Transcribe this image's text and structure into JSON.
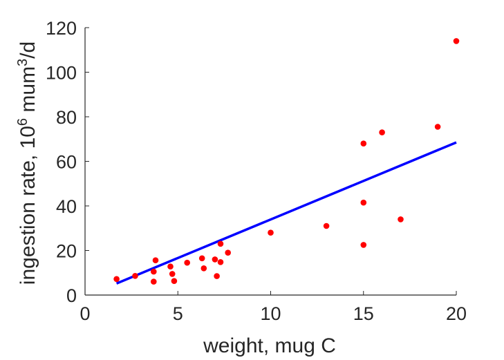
{
  "chart_data": {
    "type": "scatter",
    "title": "",
    "xlabel": "weight, mug C",
    "ylabel": {
      "prefix": "ingestion rate, 10",
      "exp1": "6",
      "middle": " mum",
      "exp2": "3",
      "suffix": "/d"
    },
    "xlim": [
      0,
      20
    ],
    "ylim": [
      0,
      120
    ],
    "xticks": [
      0,
      5,
      10,
      15,
      20
    ],
    "yticks": [
      0,
      20,
      40,
      60,
      80,
      100,
      120
    ],
    "grid": false,
    "legend": "none",
    "series": [
      {
        "kind": "scatter",
        "color": "#ff0000",
        "points": [
          {
            "x": 1.7,
            "y": 7.2
          },
          {
            "x": 2.7,
            "y": 8.6
          },
          {
            "x": 3.7,
            "y": 10.5
          },
          {
            "x": 3.7,
            "y": 6.0
          },
          {
            "x": 3.8,
            "y": 15.6
          },
          {
            "x": 4.6,
            "y": 12.8
          },
          {
            "x": 4.7,
            "y": 9.5
          },
          {
            "x": 4.8,
            "y": 6.3
          },
          {
            "x": 5.5,
            "y": 14.5
          },
          {
            "x": 6.3,
            "y": 16.5
          },
          {
            "x": 6.4,
            "y": 12.0
          },
          {
            "x": 7.0,
            "y": 16.0
          },
          {
            "x": 7.1,
            "y": 8.5
          },
          {
            "x": 7.3,
            "y": 14.8
          },
          {
            "x": 7.3,
            "y": 23.0
          },
          {
            "x": 7.7,
            "y": 19.0
          },
          {
            "x": 10.0,
            "y": 28.0
          },
          {
            "x": 13.0,
            "y": 31.0
          },
          {
            "x": 15.0,
            "y": 68.0
          },
          {
            "x": 15.0,
            "y": 41.5
          },
          {
            "x": 15.0,
            "y": 22.5
          },
          {
            "x": 16.0,
            "y": 73.0
          },
          {
            "x": 17.0,
            "y": 34.0
          },
          {
            "x": 19.0,
            "y": 75.5
          },
          {
            "x": 20.0,
            "y": 114.0
          }
        ]
      },
      {
        "kind": "line",
        "color": "#0000ff",
        "points": [
          {
            "x": 1.7,
            "y": 5.2
          },
          {
            "x": 20.0,
            "y": 68.5
          }
        ]
      }
    ],
    "colors": {
      "axis": "#262626",
      "points": "#ff0000",
      "fit": "#0000ff"
    }
  }
}
